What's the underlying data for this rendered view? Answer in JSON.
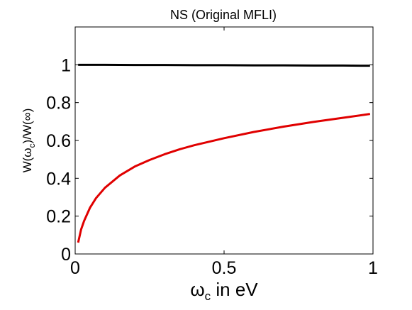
{
  "chart_data": {
    "type": "line",
    "title": "NS (Original MFLI)",
    "xlabel": {
      "main": "ω",
      "sub": "c",
      "rest": " in eV"
    },
    "ylabel": {
      "a": "W(ω",
      "sub": "c",
      "b": ")/W(∞)"
    },
    "xlim": [
      0,
      1
    ],
    "ylim": [
      0,
      1.2
    ],
    "x_ticks": [
      0,
      0.5,
      1
    ],
    "x_tick_labels": [
      "0",
      "0.5",
      "1"
    ],
    "y_ticks": [
      0,
      0.2,
      0.4,
      0.6,
      0.8,
      1
    ],
    "y_tick_labels": [
      "0",
      "0.2",
      "0.4",
      "0.6",
      "0.8",
      "1"
    ],
    "grid": false,
    "series": [
      {
        "color": "#000000",
        "x": [
          0.01,
          0.1,
          0.2,
          0.3,
          0.4,
          0.5,
          0.6,
          0.7,
          0.8,
          0.9,
          0.99
        ],
        "y": [
          1.0,
          1.0,
          0.999,
          0.999,
          0.998,
          0.998,
          0.997,
          0.997,
          0.996,
          0.996,
          0.995
        ]
      },
      {
        "color": "#e00000",
        "x": [
          0.01,
          0.02,
          0.03,
          0.05,
          0.07,
          0.1,
          0.15,
          0.2,
          0.25,
          0.3,
          0.35,
          0.4,
          0.5,
          0.6,
          0.7,
          0.8,
          0.9,
          0.99
        ],
        "y": [
          0.06,
          0.13,
          0.175,
          0.245,
          0.295,
          0.35,
          0.415,
          0.462,
          0.497,
          0.527,
          0.553,
          0.575,
          0.612,
          0.645,
          0.673,
          0.698,
          0.72,
          0.74
        ]
      }
    ]
  }
}
